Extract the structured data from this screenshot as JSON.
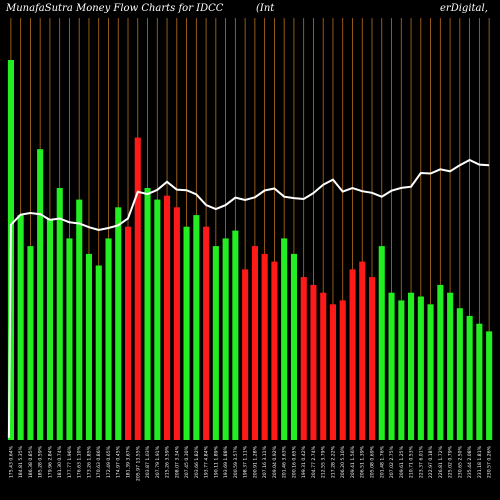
{
  "title_left": "MunafaSutra  Money Flow  Charts for IDCC",
  "title_mid": "(Int",
  "title_right": "erDigital,",
  "colors": {
    "background": "#000000",
    "grid": "#b8701c",
    "up": "#22ee22",
    "down": "#ff1a1a",
    "line": "#ffffff"
  },
  "chart_data": {
    "type": "bar",
    "title": "MunafaSutra  Money Flow  Charts for IDCC (InterDigital,",
    "categories": [
      "175.43 0.64%",
      "184.81 5.35%",
      "186.38 0.85%",
      "185.28 0.59%",
      "179.96 2.84%",
      "181.30 0.74%",
      "177.77 1.96%",
      "176.63 1.10%",
      "173.26 1.85%",
      "170.63 0.86%",
      "172.49 0.65%",
      "174.97 0.45%",
      "181.39 3.67%",
      "205.97 13.55%",
      "203.87 1.03%",
      "207.79 1.91%",
      "215.26 3.59%",
      "208.07 3.34%",
      "207.45 0.30%",
      "203.66 1.82%",
      "193.77 4.84%",
      "190.11 1.89%",
      "193.69 1.88%",
      "200.59 3.57%",
      "198.37 1.11%",
      "200.91 1.28%",
      "207.16 3.11%",
      "209.04 0.92%",
      "201.46 3.63%",
      "200.16 0.65%",
      "199.31 0.42%",
      "204.77 2.74%",
      "212.55 3.79%",
      "217.28 2.22%",
      "206.20 5.10%",
      "209.41 1.56%",
      "206.51 1.39%",
      "205.08 0.69%",
      "201.48 1.76%",
      "207.02 2.75%",
      "209.61 1.25%",
      "210.71 0.53%",
      "223.37 6.01%",
      "222.97 0.18%",
      "226.81 1.72%",
      "225.02 0.79%",
      "230.65 2.50%",
      "235.44 2.08%",
      "231.18 1.81%",
      "230.57 0.26%"
    ],
    "series": [
      {
        "values": [
          98,
          58,
          50,
          75,
          57,
          65,
          52,
          62,
          48,
          45,
          52,
          60,
          55,
          78,
          65,
          62,
          63,
          60,
          55,
          58,
          55,
          50,
          52,
          54,
          44,
          50,
          48,
          46,
          52,
          48,
          42,
          40,
          38,
          35,
          36,
          44,
          46,
          42,
          50,
          38,
          36,
          38,
          37,
          35,
          40,
          38,
          34,
          32,
          30,
          28
        ],
        "colors": [
          "up",
          "up",
          "up",
          "up",
          "up",
          "up",
          "up",
          "up",
          "up",
          "up",
          "up",
          "up",
          "down",
          "down",
          "up",
          "up",
          "down",
          "down",
          "up",
          "up",
          "down",
          "up",
          "up",
          "up",
          "down",
          "down",
          "down",
          "down",
          "up",
          "up",
          "down",
          "down",
          "down",
          "down",
          "down",
          "down",
          "down",
          "down",
          "up",
          "up",
          "up",
          "up",
          "up",
          "up",
          "up",
          "up",
          "up",
          "up",
          "up",
          "up"
        ]
      }
    ]
  }
}
